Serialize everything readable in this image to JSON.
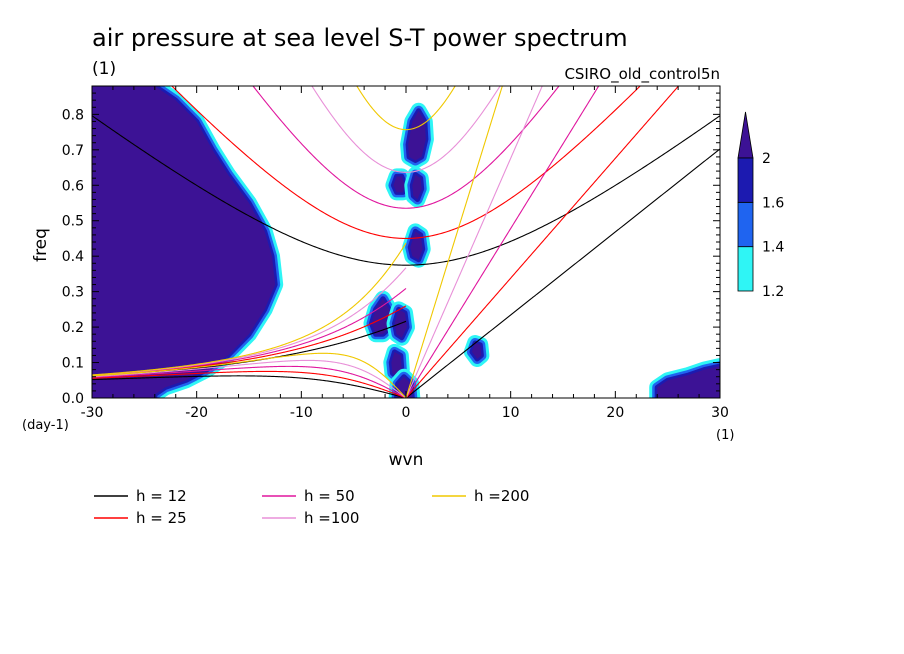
{
  "chart_data": {
    "type": "heatmap",
    "title": "air pressure at sea level S-T power spectrum",
    "title_units": "(1)",
    "subtitle_right": "CSIRO_old_control5n",
    "xlabel": "wvn",
    "xunits": "(1)",
    "ylabel": "freq",
    "yunits": "(day-1)",
    "xlim": [
      -30,
      30
    ],
    "ylim": [
      0,
      0.88
    ],
    "xticks": [
      "-30",
      "-20",
      "-10",
      "0",
      "10",
      "20",
      "30"
    ],
    "yticks": [
      "0.0",
      "0.1",
      "0.2",
      "0.3",
      "0.4",
      "0.5",
      "0.6",
      "0.7",
      "0.8"
    ],
    "colorbar": {
      "labels": [
        "1.2",
        "1.4",
        "1.6",
        "2"
      ],
      "levels": [
        1.2,
        1.4,
        1.6,
        2.0
      ],
      "colors": [
        "#2ff5f5",
        "#1f64f0",
        "#1c1ab0",
        "#3c1295"
      ]
    },
    "series": [
      {
        "name": "h = 12",
        "h": 12,
        "color": "#000000"
      },
      {
        "name": "h = 25",
        "h": 25,
        "color": "#ff0000"
      },
      {
        "name": "h = 50",
        "h": 50,
        "color": "#e0169e"
      },
      {
        "name": "h =100",
        "h": 100,
        "color": "#e890d8"
      },
      {
        "name": "h =200",
        "h": 200,
        "color": "#f0c800"
      }
    ],
    "contour_regions": [
      {
        "level": 2.0,
        "polygon": [
          [
            -30,
            0.88
          ],
          [
            -24,
            0.88
          ],
          [
            -22,
            0.84
          ],
          [
            -20,
            0.78
          ],
          [
            -18.5,
            0.7
          ],
          [
            -17,
            0.63
          ],
          [
            -15,
            0.55
          ],
          [
            -13.5,
            0.47
          ],
          [
            -12.8,
            0.4
          ],
          [
            -12.5,
            0.32
          ],
          [
            -13.5,
            0.25
          ],
          [
            -15,
            0.18
          ],
          [
            -17,
            0.12
          ],
          [
            -19,
            0.08
          ],
          [
            -21,
            0.05
          ],
          [
            -23,
            0.03
          ],
          [
            -24,
            0.01
          ],
          [
            -24,
            0
          ],
          [
            -30,
            0
          ]
        ]
      },
      {
        "level": 2.0,
        "polygon": [
          [
            30,
            0
          ],
          [
            30,
            0.09
          ],
          [
            28.5,
            0.08
          ],
          [
            27,
            0.065
          ],
          [
            25,
            0.05
          ],
          [
            24,
            0.03
          ],
          [
            24,
            0
          ]
        ]
      },
      {
        "level": 2.0,
        "polygon": [
          [
            0.2,
            0.715
          ],
          [
            0.6,
            0.78
          ],
          [
            1.2,
            0.81
          ],
          [
            1.8,
            0.78
          ],
          [
            1.9,
            0.73
          ],
          [
            1.5,
            0.68
          ],
          [
            0.9,
            0.67
          ],
          [
            0.3,
            0.68
          ]
        ]
      },
      {
        "level": 2.0,
        "polygon": [
          [
            -1.2,
            0.6
          ],
          [
            -0.9,
            0.625
          ],
          [
            -0.4,
            0.625
          ],
          [
            -0.1,
            0.6
          ],
          [
            -0.3,
            0.58
          ],
          [
            -0.9,
            0.58
          ]
        ]
      },
      {
        "level": 2.0,
        "polygon": [
          [
            0.6,
            0.6
          ],
          [
            0.9,
            0.63
          ],
          [
            1.4,
            0.62
          ],
          [
            1.5,
            0.59
          ],
          [
            1.1,
            0.56
          ],
          [
            0.7,
            0.57
          ]
        ]
      },
      {
        "level": 2.0,
        "polygon": [
          [
            0.4,
            0.425
          ],
          [
            0.9,
            0.47
          ],
          [
            1.4,
            0.46
          ],
          [
            1.6,
            0.42
          ],
          [
            1.2,
            0.39
          ],
          [
            0.6,
            0.4
          ]
        ]
      },
      {
        "level": 2.0,
        "polygon": [
          [
            -3.3,
            0.21
          ],
          [
            -2.9,
            0.25
          ],
          [
            -2.2,
            0.28
          ],
          [
            -1.6,
            0.25
          ],
          [
            -1.5,
            0.2
          ],
          [
            -2.2,
            0.18
          ],
          [
            -2.9,
            0.18
          ]
        ]
      },
      {
        "level": 2.0,
        "polygon": [
          [
            -1.1,
            0.21
          ],
          [
            -0.7,
            0.25
          ],
          [
            -0.1,
            0.24
          ],
          [
            0.1,
            0.2
          ],
          [
            -0.4,
            0.17
          ],
          [
            -0.9,
            0.18
          ]
        ]
      },
      {
        "level": 2.0,
        "polygon": [
          [
            -1.4,
            0.1
          ],
          [
            -1.1,
            0.13
          ],
          [
            -0.5,
            0.12
          ],
          [
            -0.4,
            0.08
          ],
          [
            -0.9,
            0.06
          ],
          [
            -1.3,
            0.07
          ]
        ]
      },
      {
        "level": 2.0,
        "polygon": [
          [
            -0.9,
            0.0
          ],
          [
            -0.8,
            0.04
          ],
          [
            -0.2,
            0.06
          ],
          [
            0.5,
            0.04
          ],
          [
            0.6,
            0.0
          ]
        ]
      },
      {
        "level": 2.0,
        "polygon": [
          [
            6.3,
            0.13
          ],
          [
            6.6,
            0.155
          ],
          [
            7.1,
            0.15
          ],
          [
            7.2,
            0.12
          ],
          [
            6.8,
            0.11
          ]
        ]
      }
    ]
  }
}
